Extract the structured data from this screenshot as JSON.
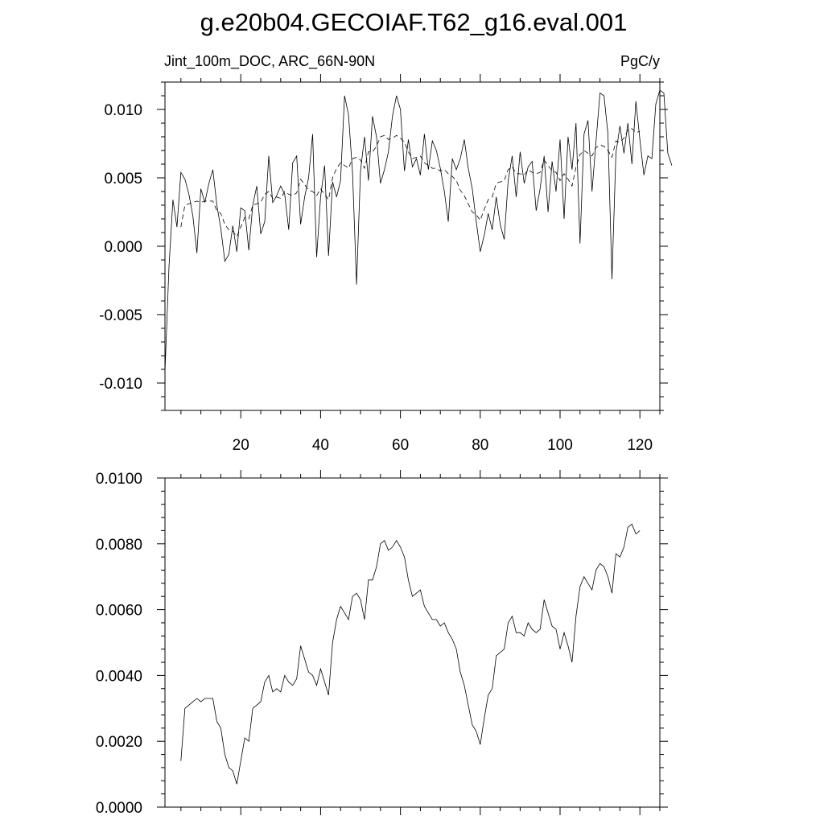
{
  "page": {
    "title": "g.e20b04.GECOIAF.T62_g16.eval.001",
    "top_left_label": "Jint_100m_DOC, ARC_66N-90N",
    "top_right_label": "PgC/y"
  },
  "chart_data": [
    {
      "type": "line",
      "title": "",
      "xlabel": "",
      "ylabel": "",
      "xlim": [
        1,
        125
      ],
      "ylim": [
        -0.012,
        0.012
      ],
      "x_ticks": [
        20,
        40,
        60,
        80,
        100,
        120
      ],
      "x_tick_labels": [
        "20",
        "40",
        "60",
        "80",
        "100",
        "120"
      ],
      "y_ticks": [
        -0.01,
        -0.005,
        0.0,
        0.005,
        0.01
      ],
      "y_tick_labels": [
        "-0.010",
        "-0.005",
        "0.000",
        "0.005",
        "0.010"
      ],
      "grid": false,
      "series": [
        {
          "style": "solid",
          "x_start": 1,
          "values": [
            -0.0092,
            -0.0015,
            0.0034,
            0.0014,
            0.0054,
            0.0049,
            0.0038,
            0.0022,
            -0.0005,
            0.0042,
            0.0032,
            0.0046,
            0.0056,
            0.003,
            0.0013,
            -0.0011,
            -0.0006,
            0.0015,
            -0.0004,
            0.0028,
            0.0026,
            -0.0003,
            0.003,
            0.0044,
            0.0009,
            0.0018,
            0.0066,
            0.0032,
            0.0037,
            0.0044,
            0.0038,
            0.0012,
            0.0061,
            0.0066,
            0.0016,
            0.0036,
            0.005,
            0.0082,
            -0.0008,
            0.0036,
            0.0059,
            -0.0007,
            0.0047,
            0.0036,
            0.0048,
            0.011,
            0.0096,
            0.0054,
            -0.0028,
            0.0055,
            0.008,
            0.0048,
            0.0095,
            0.008,
            0.0046,
            0.0056,
            0.0069,
            0.0095,
            0.011,
            0.01,
            0.0055,
            0.0078,
            0.0058,
            0.0064,
            0.0052,
            0.0082,
            0.0056,
            0.0077,
            0.007,
            0.0057,
            0.004,
            0.0018,
            0.0064,
            0.0056,
            0.0064,
            0.0078,
            0.0057,
            0.0042,
            0.0018,
            -0.0004,
            0.0008,
            0.0024,
            0.0012,
            0.0036,
            0.0016,
            0.0005,
            0.0048,
            0.0066,
            0.0036,
            0.0069,
            0.0046,
            0.0058,
            0.0062,
            0.0026,
            0.0042,
            0.0066,
            0.0025,
            0.0062,
            0.004,
            0.0078,
            0.002,
            0.008,
            0.0056,
            0.009,
            0.0002,
            0.0082,
            0.0092,
            0.004,
            0.0076,
            0.0112,
            0.011,
            0.0082,
            -0.0024,
            0.0068,
            0.0088,
            0.0068,
            0.009,
            0.006,
            0.0106,
            0.0078,
            0.0052,
            0.0066,
            0.0064,
            0.0104,
            0.0114,
            0.0112,
            0.0068,
            0.0059
          ]
        },
        {
          "style": "dashed",
          "x_start": 5,
          "values": [
            0.0014,
            0.003,
            0.0031,
            0.0032,
            0.0033,
            0.0032,
            0.0033,
            0.0033,
            0.0033,
            0.0026,
            0.0024,
            0.0016,
            0.0012,
            0.0011,
            0.0007,
            0.0014,
            0.0021,
            0.002,
            0.003,
            0.0031,
            0.0032,
            0.0038,
            0.004,
            0.0035,
            0.0036,
            0.0035,
            0.004,
            0.0038,
            0.0037,
            0.0039,
            0.0049,
            0.0045,
            0.0041,
            0.004,
            0.0037,
            0.0042,
            0.0038,
            0.0034,
            0.005,
            0.0057,
            0.0061,
            0.0059,
            0.0057,
            0.0064,
            0.0065,
            0.0063,
            0.0057,
            0.0069,
            0.0069,
            0.0073,
            0.008,
            0.0081,
            0.0078,
            0.0079,
            0.0081,
            0.0079,
            0.0076,
            0.0069,
            0.0064,
            0.0065,
            0.0066,
            0.0061,
            0.0059,
            0.0057,
            0.0057,
            0.0055,
            0.0056,
            0.0053,
            0.0051,
            0.0048,
            0.0041,
            0.0037,
            0.0031,
            0.0025,
            0.0023,
            0.0019,
            0.0027,
            0.0034,
            0.0036,
            0.0046,
            0.0047,
            0.0048,
            0.0056,
            0.0058,
            0.0053,
            0.0053,
            0.0052,
            0.0056,
            0.0054,
            0.0053,
            0.0054,
            0.0063,
            0.0059,
            0.0055,
            0.0054,
            0.0048,
            0.0053,
            0.0049,
            0.0044,
            0.0058,
            0.0067,
            0.007,
            0.0068,
            0.0066,
            0.0072,
            0.0074,
            0.0073,
            0.007,
            0.0065,
            0.0077,
            0.0076,
            0.0079,
            0.0085,
            0.0086,
            0.0083,
            0.0084
          ]
        }
      ]
    },
    {
      "type": "line",
      "title": "",
      "xlabel": "",
      "ylabel": "",
      "xlim": [
        1,
        125
      ],
      "ylim": [
        0.0,
        0.01
      ],
      "x_ticks": [
        20,
        40,
        60,
        80,
        100,
        120
      ],
      "x_tick_labels": [],
      "y_ticks": [
        0.0,
        0.002,
        0.004,
        0.006,
        0.008,
        0.01
      ],
      "y_tick_labels": [
        "0.0000",
        "0.0020",
        "0.0040",
        "0.0060",
        "0.0080",
        "0.0100"
      ],
      "grid": false,
      "series": [
        {
          "style": "solid",
          "x_start": 5,
          "values": [
            0.0014,
            0.003,
            0.0031,
            0.0032,
            0.0033,
            0.0032,
            0.0033,
            0.0033,
            0.0033,
            0.0026,
            0.0024,
            0.0016,
            0.0012,
            0.0011,
            0.0007,
            0.0014,
            0.0021,
            0.002,
            0.003,
            0.0031,
            0.0032,
            0.0038,
            0.004,
            0.0035,
            0.0036,
            0.0035,
            0.004,
            0.0038,
            0.0037,
            0.0039,
            0.0049,
            0.0045,
            0.0041,
            0.004,
            0.0037,
            0.0042,
            0.0038,
            0.0034,
            0.005,
            0.0057,
            0.0061,
            0.0059,
            0.0057,
            0.0064,
            0.0065,
            0.0063,
            0.0057,
            0.0069,
            0.0069,
            0.0073,
            0.008,
            0.0081,
            0.0078,
            0.0079,
            0.0081,
            0.0079,
            0.0076,
            0.0069,
            0.0064,
            0.0065,
            0.0066,
            0.0061,
            0.0059,
            0.0057,
            0.0057,
            0.0055,
            0.0056,
            0.0053,
            0.0051,
            0.0048,
            0.0041,
            0.0037,
            0.0031,
            0.0025,
            0.0023,
            0.0019,
            0.0027,
            0.0034,
            0.0036,
            0.0046,
            0.0047,
            0.0048,
            0.0056,
            0.0058,
            0.0053,
            0.0053,
            0.0052,
            0.0056,
            0.0054,
            0.0053,
            0.0054,
            0.0063,
            0.0059,
            0.0055,
            0.0054,
            0.0048,
            0.0053,
            0.0049,
            0.0044,
            0.0058,
            0.0067,
            0.007,
            0.0068,
            0.0066,
            0.0072,
            0.0074,
            0.0073,
            0.007,
            0.0065,
            0.0077,
            0.0076,
            0.0079,
            0.0085,
            0.0086,
            0.0083,
            0.0084
          ]
        }
      ]
    }
  ]
}
